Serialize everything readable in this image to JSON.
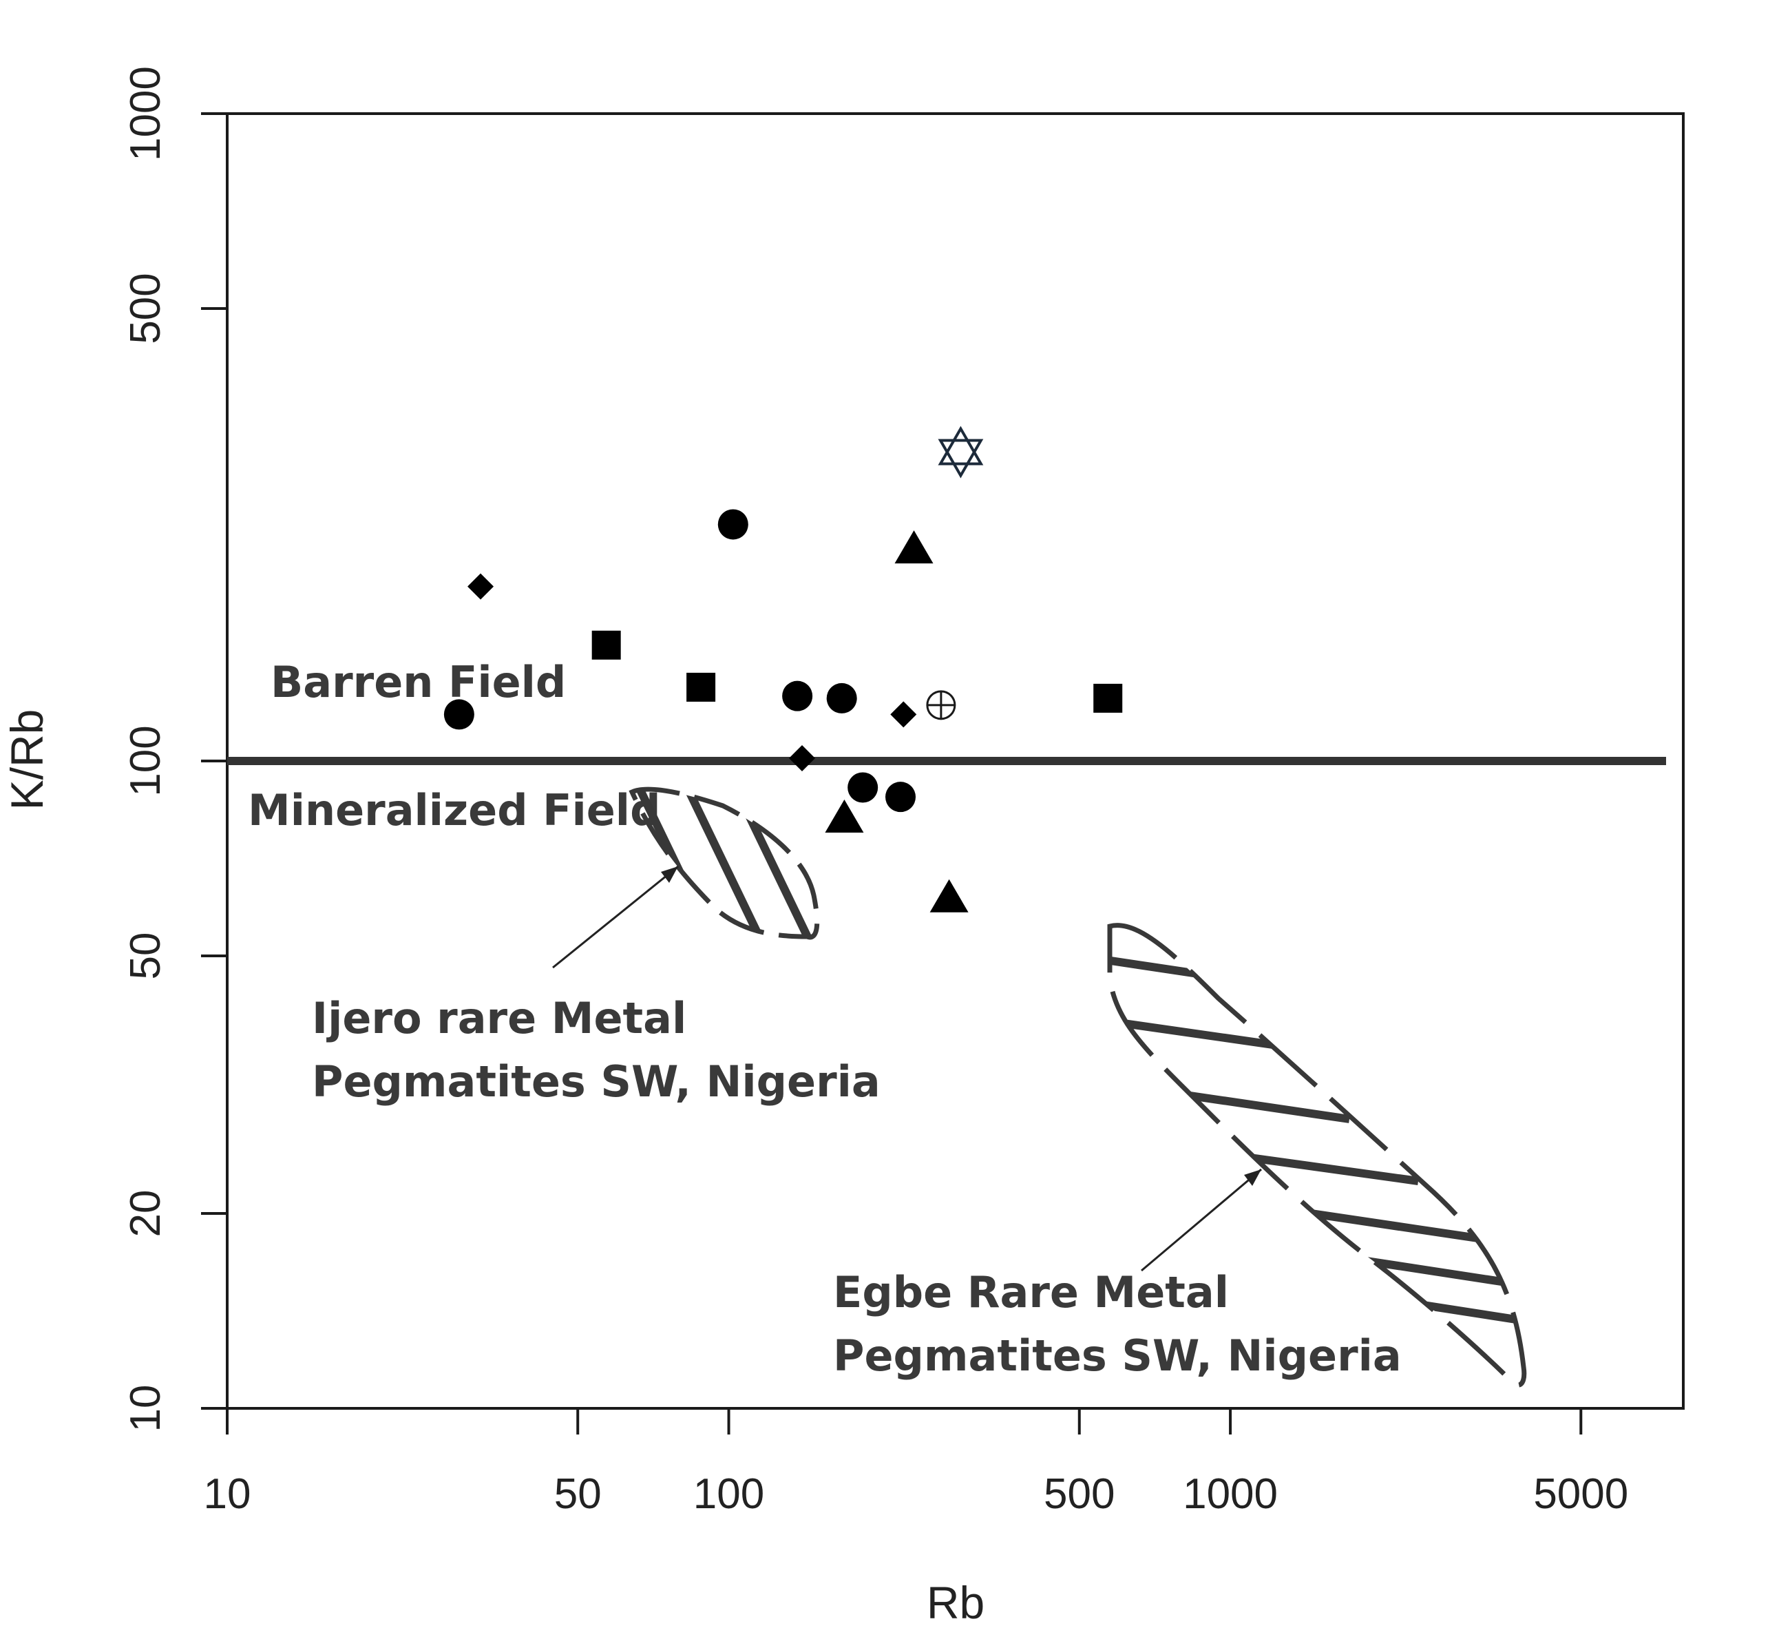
{
  "chart_data": {
    "type": "scatter",
    "title": "",
    "xlabel": "Rb",
    "ylabel": "K/Rb",
    "x_scale": "log",
    "y_scale": "log",
    "xlim": [
      10,
      8000
    ],
    "ylim": [
      10,
      1000
    ],
    "x_ticks": [
      10,
      50,
      100,
      500,
      1000,
      5000
    ],
    "y_ticks": [
      10,
      20,
      50,
      100,
      500,
      1000
    ],
    "grid": false,
    "boundary": {
      "y": 100,
      "label_above": "Barren Field",
      "label_below": "Mineralized Field"
    },
    "series": [
      {
        "marker": "circle",
        "points": [
          {
            "x": 29,
            "y": 118
          },
          {
            "x": 102,
            "y": 232
          },
          {
            "x": 137,
            "y": 126
          },
          {
            "x": 168,
            "y": 125
          },
          {
            "x": 185,
            "y": 91
          },
          {
            "x": 220,
            "y": 88
          }
        ]
      },
      {
        "marker": "diamond",
        "points": [
          {
            "x": 32,
            "y": 186
          },
          {
            "x": 140,
            "y": 101
          },
          {
            "x": 223,
            "y": 118
          }
        ]
      },
      {
        "marker": "square",
        "points": [
          {
            "x": 57,
            "y": 151
          },
          {
            "x": 88,
            "y": 130
          },
          {
            "x": 570,
            "y": 125
          }
        ]
      },
      {
        "marker": "triangle",
        "points": [
          {
            "x": 234,
            "y": 211
          },
          {
            "x": 170,
            "y": 81
          },
          {
            "x": 275,
            "y": 61
          }
        ]
      },
      {
        "marker": "star-of-david",
        "points": [
          {
            "x": 290,
            "y": 300
          }
        ]
      },
      {
        "marker": "circle-plus",
        "points": [
          {
            "x": 265,
            "y": 122
          }
        ]
      }
    ],
    "regions": [
      {
        "label_lines": [
          "Ijero rare Metal",
          "Pegmatites SW, Nigeria"
        ]
      },
      {
        "label_lines": [
          "Egbe Rare Metal",
          "Pegmatites SW, Nigeria"
        ]
      }
    ]
  }
}
